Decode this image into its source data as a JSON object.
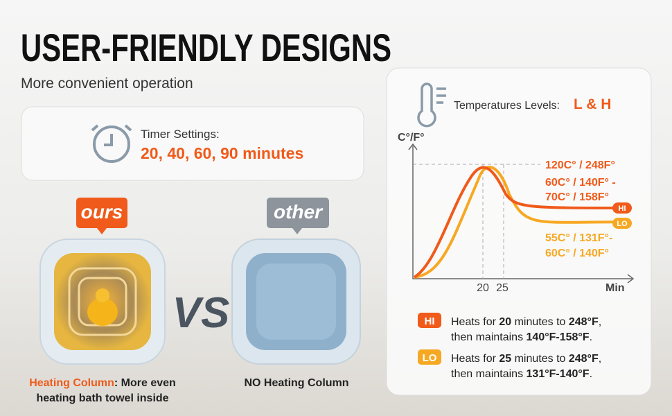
{
  "header": {
    "title": "USER-FRIENDLY DESIGNS",
    "subtitle": "More convenient operation"
  },
  "timer": {
    "label": "Timer Settings:",
    "value": "20, 40, 60, 90 minutes"
  },
  "compare": {
    "ours_tag": "ours",
    "other_tag": "other",
    "vs": "VS",
    "ours_caption": {
      "highlight": "Heating Column",
      "rest_1": ": More even",
      "rest_2": "heating bath towel inside"
    },
    "other_caption": "NO Heating Column"
  },
  "panel": {
    "heading": "Temperatures Levels:",
    "levels": "L & H",
    "graph": {
      "y_label": "C°/F°",
      "x_label": "Min",
      "x_ticks": [
        "20",
        "25"
      ],
      "hi_tag": "HI",
      "lo_tag": "LO",
      "peak": "120C° / 248F°",
      "hi_hold_1": "60C° / 140F° -",
      "hi_hold_2": "70C° / 158F°",
      "lo_hold_1": "55C° / 131F°-",
      "lo_hold_2": "60C° / 140F°"
    },
    "legend": [
      {
        "tag": "HI",
        "lines": [
          [
            {
              "text": "Heats for ",
              "bold": false
            },
            {
              "text": "20",
              "bold": true
            },
            {
              "text": " minutes to ",
              "bold": false
            },
            {
              "text": "248°F",
              "bold": true
            },
            {
              "text": ",",
              "bold": false
            }
          ],
          [
            {
              "text": "then maintains ",
              "bold": false
            },
            {
              "text": "140°F-158°F",
              "bold": true
            },
            {
              "text": ".",
              "bold": false
            }
          ]
        ]
      },
      {
        "tag": "LO",
        "lines": [
          [
            {
              "text": "Heats for ",
              "bold": false
            },
            {
              "text": "25",
              "bold": true
            },
            {
              "text": " minutes to ",
              "bold": false
            },
            {
              "text": "248°F",
              "bold": true
            },
            {
              "text": ",",
              "bold": false
            }
          ],
          [
            {
              "text": "then maintains ",
              "bold": false
            },
            {
              "text": "131°F-140°F",
              "bold": true
            },
            {
              "text": ".",
              "bold": false
            }
          ]
        ]
      }
    ]
  }
}
